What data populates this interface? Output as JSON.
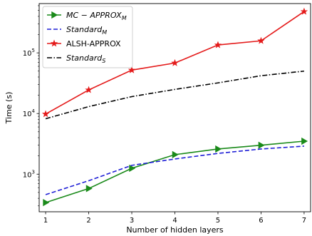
{
  "chart_data": {
    "type": "line",
    "xlabel": "Number of hidden layers",
    "ylabel": "Time (s)",
    "yscale": "log",
    "xlim": [
      0.85,
      7.15
    ],
    "ylim": [
      240,
      650000
    ],
    "x_ticks": [
      1,
      2,
      3,
      4,
      5,
      6,
      7
    ],
    "x_tick_labels": [
      "1",
      "2",
      "3",
      "4",
      "5",
      "6",
      "7"
    ],
    "y_ticks": [
      1000,
      10000,
      100000
    ],
    "y_tick_labels": [
      {
        "base": "10",
        "exp": "3"
      },
      {
        "base": "10",
        "exp": "4"
      },
      {
        "base": "10",
        "exp": "5"
      }
    ],
    "grid": false,
    "legend_position": "top-left",
    "x": [
      1,
      2,
      3,
      4,
      5,
      6,
      7
    ],
    "series": [
      {
        "name": "MC − APPROX",
        "name_sub": "M",
        "italic": true,
        "color": "#1a8a1a",
        "line_style": "solid",
        "marker": "triangle-right",
        "values": [
          340,
          580,
          1250,
          2100,
          2600,
          3000,
          3500
        ]
      },
      {
        "name": "Standard",
        "name_sub": "M",
        "italic": true,
        "color": "#1f1fd6",
        "line_style": "dashed",
        "marker": "none",
        "values": [
          460,
          780,
          1400,
          1780,
          2200,
          2600,
          2900
        ]
      },
      {
        "name": "ALSH-APPROX",
        "name_sub": "",
        "italic": false,
        "color": "#e41a1a",
        "line_style": "solid",
        "marker": "star",
        "values": [
          9800,
          24500,
          52000,
          68000,
          135000,
          158000,
          480000
        ]
      },
      {
        "name": "Standard",
        "name_sub": "S",
        "italic": true,
        "color": "#000000",
        "line_style": "dashdot",
        "marker": "none",
        "values": [
          8200,
          13000,
          19000,
          25000,
          32000,
          42000,
          50000
        ]
      }
    ]
  }
}
